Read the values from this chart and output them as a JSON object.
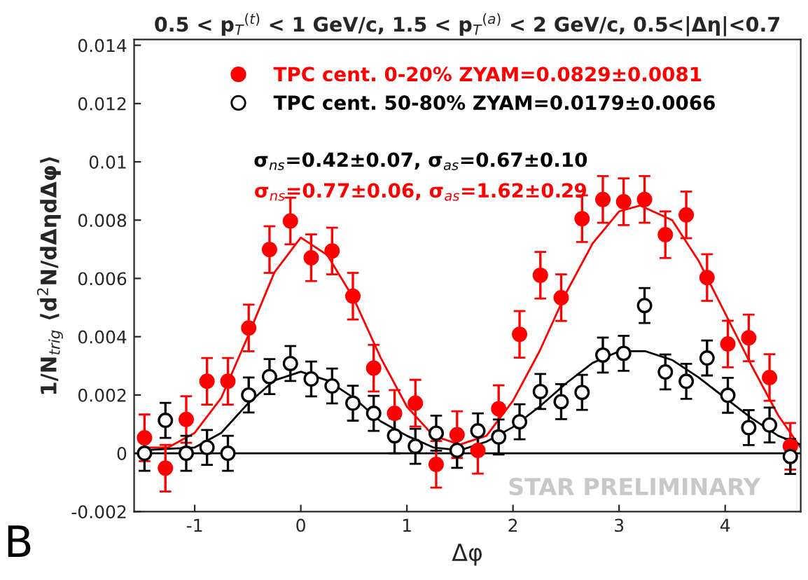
{
  "chart_data": {
    "type": "scatter",
    "title": "0.5 < p$_{T}$$^{(t)}$ < 1 GeV/c, 1.5 < p$_{T}$$^{(a)}$ < 2 GeV/c, 0.5<|Δη|<0.7",
    "xlabel": "Δφ",
    "ylabel": "1/N$_{trig}$ ⟨d$^{2}$N/dΔηdΔφ⟩",
    "x": [
      -1.473,
      -1.276,
      -1.08,
      -0.884,
      -0.687,
      -0.491,
      -0.295,
      -0.098,
      0.098,
      0.295,
      0.491,
      0.687,
      0.884,
      1.08,
      1.276,
      1.473,
      1.669,
      1.865,
      2.062,
      2.258,
      2.454,
      2.651,
      2.847,
      3.043,
      3.24,
      3.436,
      3.633,
      3.829,
      4.025,
      4.222,
      4.418,
      4.614
    ],
    "series": [
      {
        "name": "TPC cent. 0-20% ZYAM=0.0829±0.0081",
        "color": "#ff0000",
        "marker": "circle",
        "values": [
          0.00053,
          -0.00051,
          0.00116,
          0.00247,
          0.00247,
          0.0043,
          0.00699,
          0.00797,
          0.00671,
          0.00694,
          0.00539,
          0.00292,
          0.00137,
          0.00172,
          -0.00038,
          0.00064,
          0.0001,
          0.00153,
          0.00408,
          0.00611,
          0.00534,
          0.00805,
          0.00871,
          0.00863,
          0.00871,
          0.0075,
          0.00818,
          0.00603,
          0.00375,
          0.00396,
          0.0026,
          0.00024
        ],
        "errors": [
          0.0008,
          0.0008,
          0.0008,
          0.0008,
          0.0008,
          0.0008,
          0.0008,
          0.0008,
          0.0008,
          0.0008,
          0.0008,
          0.0008,
          0.0008,
          0.0008,
          0.0008,
          0.0008,
          0.0008,
          0.0008,
          0.0008,
          0.0008,
          0.0008,
          0.0008,
          0.0008,
          0.0008,
          0.0008,
          0.0008,
          0.0008,
          0.0008,
          0.0008,
          0.0008,
          0.0008,
          0.0008
        ]
      },
      {
        "name": "TPC cent. 50-80% ZYAM=0.0179±0.0066",
        "color": "#000000",
        "marker": "circle",
        "values": [
          0.0,
          0.00113,
          0.0,
          0.0002,
          0.0,
          0.002,
          0.00263,
          0.00308,
          0.00255,
          0.00231,
          0.00172,
          0.00137,
          0.0006,
          0.00024,
          0.00069,
          0.0001,
          0.00077,
          0.00056,
          0.00108,
          0.00212,
          0.00177,
          0.00209,
          0.00337,
          0.00343,
          0.00507,
          0.00279,
          0.00247,
          0.00327,
          0.00199,
          0.00088,
          0.00097,
          -0.00011
        ],
        "errors": [
          0.0006,
          0.0006,
          0.0006,
          0.0006,
          0.0006,
          0.0006,
          0.0006,
          0.0006,
          0.0006,
          0.0006,
          0.0006,
          0.0006,
          0.0006,
          0.0006,
          0.0006,
          0.0006,
          0.0006,
          0.0006,
          0.0006,
          0.0006,
          0.0006,
          0.0006,
          0.0006,
          0.0006,
          0.0006,
          0.0006,
          0.0006,
          0.0006,
          0.0006,
          0.0006,
          0.0006,
          0.0006
        ]
      },
      {
        "type": "line",
        "color": "#ff0000",
        "x": [
          -1.5,
          -1.25,
          -1.0,
          -0.75,
          -0.5,
          -0.25,
          0.0,
          0.25,
          0.5,
          0.75,
          1.0,
          1.25,
          1.5,
          1.75,
          2.0,
          2.25,
          2.5,
          2.75,
          3.0,
          3.2,
          3.5,
          3.75,
          4.0,
          4.25,
          4.5,
          4.71
        ],
        "values": [
          0.0002,
          0.0002,
          0.0007,
          0.0019,
          0.004,
          0.0062,
          0.0074,
          0.0068,
          0.0053,
          0.0033,
          0.0016,
          0.0006,
          0.0003,
          0.0006,
          0.0018,
          0.0035,
          0.0055,
          0.0072,
          0.0083,
          0.0085,
          0.008,
          0.0066,
          0.0048,
          0.003,
          0.0013,
          0.0002
        ]
      },
      {
        "type": "line",
        "color": "#000000",
        "x": [
          -1.5,
          -1.0,
          -0.75,
          -0.5,
          -0.25,
          0.0,
          0.25,
          0.5,
          0.75,
          1.0,
          1.25,
          1.5,
          1.75,
          2.0,
          2.25,
          2.5,
          2.75,
          3.0,
          3.25,
          3.5,
          3.75,
          4.0,
          4.25,
          4.5,
          4.71
        ],
        "values": [
          0.0001,
          0.0002,
          0.0007,
          0.0017,
          0.0025,
          0.0028,
          0.0025,
          0.0019,
          0.0011,
          0.0006,
          0.0002,
          0.0001,
          0.0004,
          0.0009,
          0.0016,
          0.0024,
          0.0031,
          0.0035,
          0.0035,
          0.0032,
          0.0026,
          0.0019,
          0.0012,
          0.0006,
          0.0003
        ]
      }
    ],
    "xlim": [
      -1.571,
      4.712
    ],
    "ylim": [
      -0.002,
      0.0142
    ],
    "xticks": [
      -1,
      0,
      1,
      2,
      3,
      4
    ],
    "yticks": [
      -0.002,
      {
        "value": 0,
        "label": "0"
      },
      0.002,
      0.004,
      0.006,
      0.008,
      {
        "value": 0.01,
        "label": "0.01"
      },
      0.012,
      0.014
    ],
    "ref_lines": [
      {
        "axis": "y",
        "value": 0,
        "color": "#000000"
      }
    ],
    "annotations": [
      "σ$_{ns}$=0.42±0.07, σ$_{as}$=0.67±0.10",
      "σ$_{ns}$=0.77±0.06, σ$_{as}$=1.62±0.29",
      "STAR PRELIMINARY",
      "B"
    ],
    "legend": "top",
    "grid": false
  }
}
